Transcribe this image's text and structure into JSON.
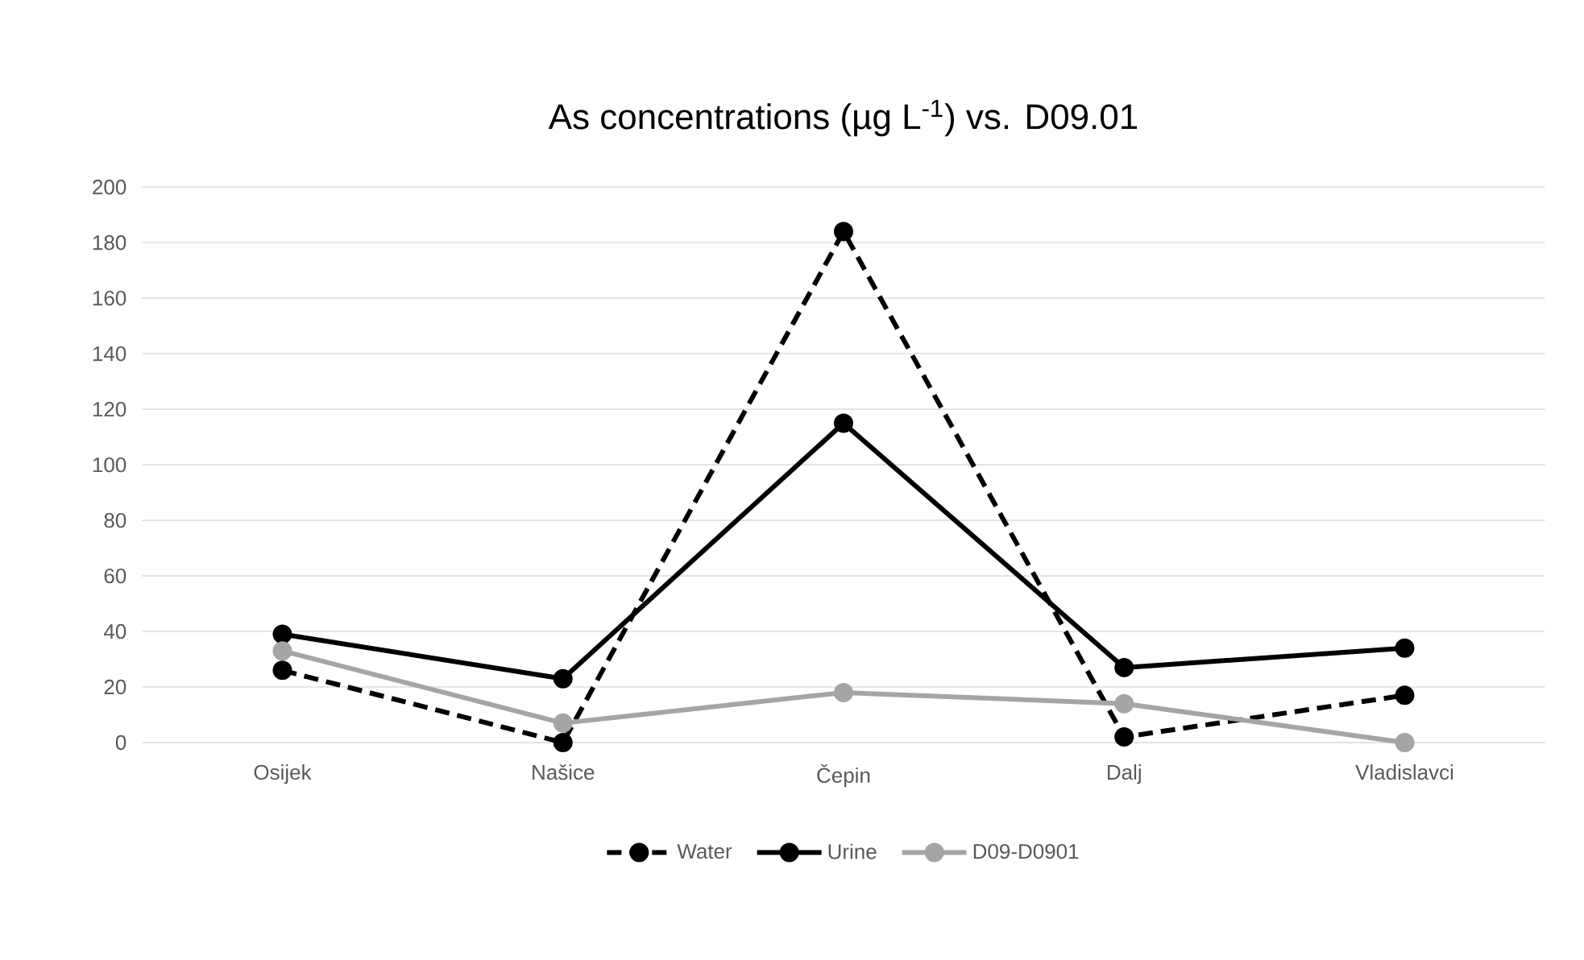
{
  "chart_data": {
    "type": "line",
    "title": "As concentrations (µg L$^{-1}$) vs. D09.01",
    "categories": [
      "Osijek",
      "Našice",
      "Čepin",
      "Dalj",
      "Vladislavci"
    ],
    "series": [
      {
        "name": "Water",
        "color": "#000000",
        "line_style": "dashed",
        "values": [
          26,
          0,
          184,
          2,
          17
        ]
      },
      {
        "name": "Urine",
        "color": "#000000",
        "line_style": "solid",
        "values": [
          39,
          23,
          115,
          27,
          34
        ]
      },
      {
        "name": "D09-D0901",
        "color": "#a5a5a5",
        "line_style": "solid",
        "values": [
          33,
          7,
          18,
          14,
          0
        ]
      }
    ],
    "ylim": [
      0,
      200
    ],
    "yticks": [
      0,
      20,
      40,
      60,
      80,
      100,
      120,
      140,
      160,
      180,
      200
    ],
    "grid": "y",
    "legend": "bottom",
    "marker": "circle"
  }
}
